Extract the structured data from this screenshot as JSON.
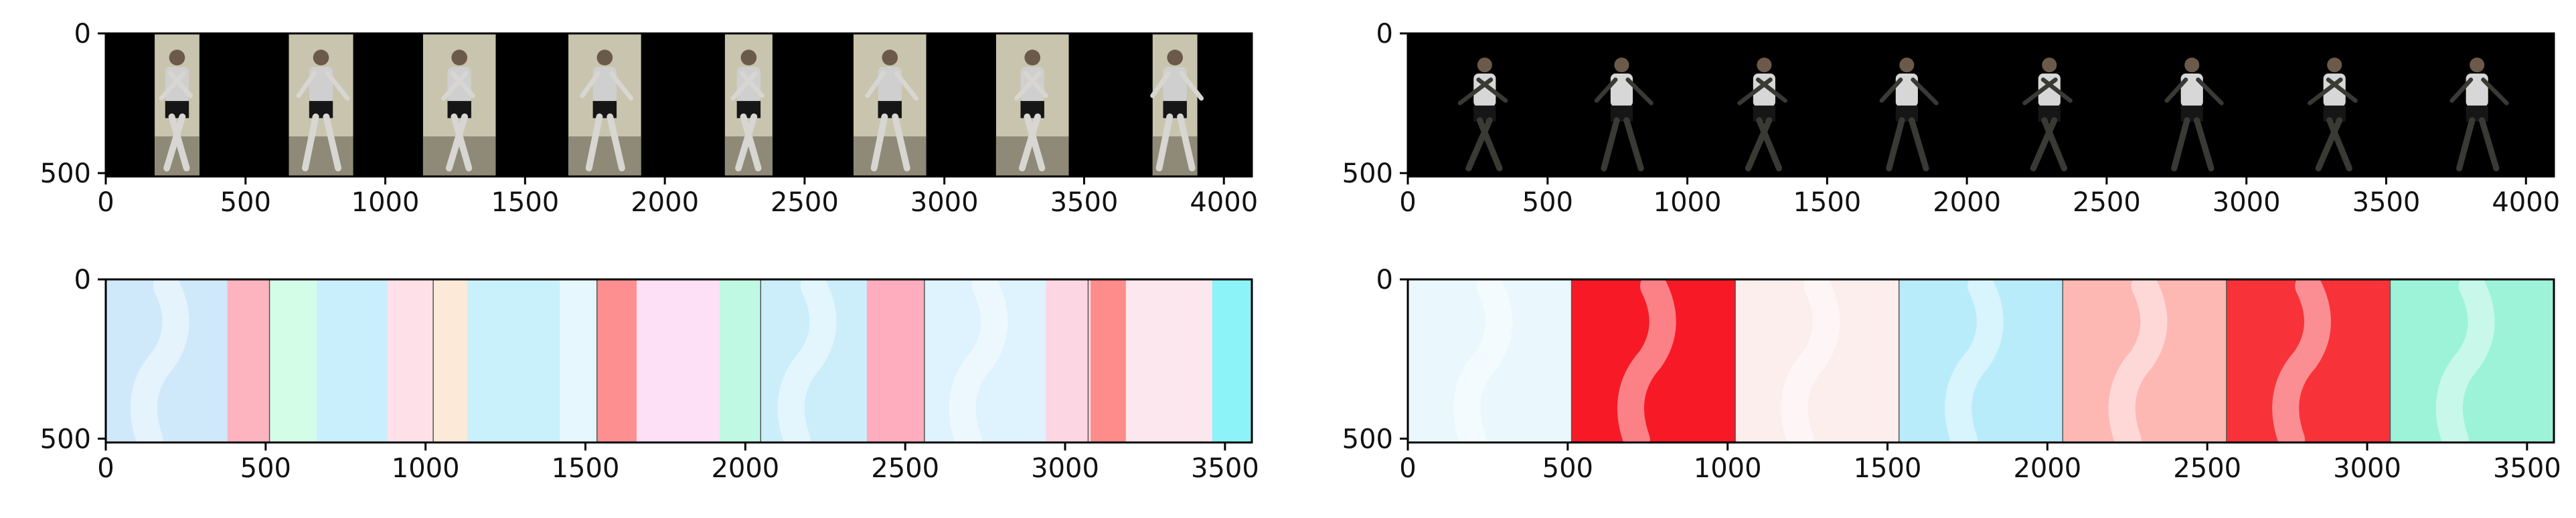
{
  "figure": {
    "title": "",
    "background": "#ffffff"
  },
  "chart_data": [
    {
      "type": "image",
      "panel": "top-left",
      "title": "",
      "xlabel": "",
      "ylabel": "",
      "xlim": [
        0,
        4100
      ],
      "ylim": [
        512,
        0
      ],
      "xticks": [
        0,
        500,
        1000,
        1500,
        2000,
        2500,
        3000,
        3500,
        4000
      ],
      "yticks": [
        0,
        500
      ],
      "background": "#000000",
      "frames": [
        {
          "x0": 175,
          "x1": 335,
          "style": "photo"
        },
        {
          "x0": 655,
          "x1": 885,
          "style": "photo"
        },
        {
          "x0": 1135,
          "x1": 1395,
          "style": "photo"
        },
        {
          "x0": 1655,
          "x1": 1915,
          "style": "photo"
        },
        {
          "x0": 2215,
          "x1": 2385,
          "style": "photo"
        },
        {
          "x0": 2675,
          "x1": 2935,
          "style": "photo"
        },
        {
          "x0": 3185,
          "x1": 3445,
          "style": "photo"
        },
        {
          "x0": 3745,
          "x1": 3905,
          "style": "photo"
        }
      ]
    },
    {
      "type": "image",
      "panel": "top-right",
      "title": "",
      "xlabel": "",
      "ylabel": "",
      "xlim": [
        0,
        4100
      ],
      "ylim": [
        512,
        0
      ],
      "xticks": [
        0,
        500,
        1000,
        1500,
        2000,
        2500,
        3000,
        3500,
        4000
      ],
      "yticks": [
        0,
        500
      ],
      "background": "#000000",
      "frames": [
        {
          "x0": 150,
          "x1": 400,
          "style": "silhouette"
        },
        {
          "x0": 640,
          "x1": 890,
          "style": "silhouette"
        },
        {
          "x0": 1150,
          "x1": 1400,
          "style": "silhouette"
        },
        {
          "x0": 1660,
          "x1": 1910,
          "style": "silhouette"
        },
        {
          "x0": 2170,
          "x1": 2420,
          "style": "silhouette"
        },
        {
          "x0": 2680,
          "x1": 2930,
          "style": "silhouette"
        },
        {
          "x0": 3190,
          "x1": 3440,
          "style": "silhouette"
        },
        {
          "x0": 3700,
          "x1": 3950,
          "style": "silhouette"
        }
      ]
    },
    {
      "type": "image",
      "panel": "bottom-left",
      "title": "",
      "xlabel": "",
      "ylabel": "",
      "xlim": [
        0,
        3584
      ],
      "ylim": [
        512,
        0
      ],
      "xticks": [
        0,
        500,
        1000,
        1500,
        2000,
        2500,
        3000,
        3500
      ],
      "yticks": [
        0,
        500
      ],
      "segments": [
        {
          "x0": 0,
          "x1": 380,
          "color": "#cfe9fb"
        },
        {
          "x0": 380,
          "x1": 512,
          "color": "#fdb4bf"
        },
        {
          "x0": 512,
          "x1": 660,
          "color": "#d4fde8"
        },
        {
          "x0": 660,
          "x1": 880,
          "color": "#c9eefc"
        },
        {
          "x0": 880,
          "x1": 1024,
          "color": "#fde0e8"
        },
        {
          "x0": 1024,
          "x1": 1130,
          "color": "#fde9d8"
        },
        {
          "x0": 1130,
          "x1": 1420,
          "color": "#c9f1fb"
        },
        {
          "x0": 1420,
          "x1": 1536,
          "color": "#e6f8fd"
        },
        {
          "x0": 1536,
          "x1": 1660,
          "color": "#fd8f91"
        },
        {
          "x0": 1660,
          "x1": 1920,
          "color": "#fde0f6"
        },
        {
          "x0": 1920,
          "x1": 2048,
          "color": "#bff9e4"
        },
        {
          "x0": 2048,
          "x1": 2380,
          "color": "#cceefb"
        },
        {
          "x0": 2380,
          "x1": 2560,
          "color": "#fdadbd"
        },
        {
          "x0": 2560,
          "x1": 2940,
          "color": "#def3fd"
        },
        {
          "x0": 2940,
          "x1": 3080,
          "color": "#fdd6e3"
        },
        {
          "x0": 3080,
          "x1": 3190,
          "color": "#fd8c8a"
        },
        {
          "x0": 3190,
          "x1": 3460,
          "color": "#fde7ee"
        },
        {
          "x0": 3460,
          "x1": 3584,
          "color": "#8cf4f8"
        }
      ],
      "separators": [
        512,
        1024,
        1536,
        2048,
        2560,
        3072
      ]
    },
    {
      "type": "image",
      "panel": "bottom-right",
      "title": "",
      "xlabel": "",
      "ylabel": "",
      "xlim": [
        0,
        3584
      ],
      "ylim": [
        512,
        0
      ],
      "xticks": [
        0,
        500,
        1000,
        1500,
        2000,
        2500,
        3000,
        3500
      ],
      "yticks": [
        0,
        500
      ],
      "segments": [
        {
          "x0": 0,
          "x1": 512,
          "color": "#eaf8fd"
        },
        {
          "x0": 512,
          "x1": 1024,
          "color": "#f71a26"
        },
        {
          "x0": 1024,
          "x1": 1536,
          "color": "#fdeeee"
        },
        {
          "x0": 1536,
          "x1": 2048,
          "color": "#b8ecfb"
        },
        {
          "x0": 2048,
          "x1": 2560,
          "color": "#fdb8b4"
        },
        {
          "x0": 2560,
          "x1": 3072,
          "color": "#f83239"
        },
        {
          "x0": 3072,
          "x1": 3584,
          "color": "#9cf3d8"
        }
      ],
      "separators": [
        512,
        1024,
        1536,
        2048,
        2560,
        3072
      ]
    }
  ]
}
